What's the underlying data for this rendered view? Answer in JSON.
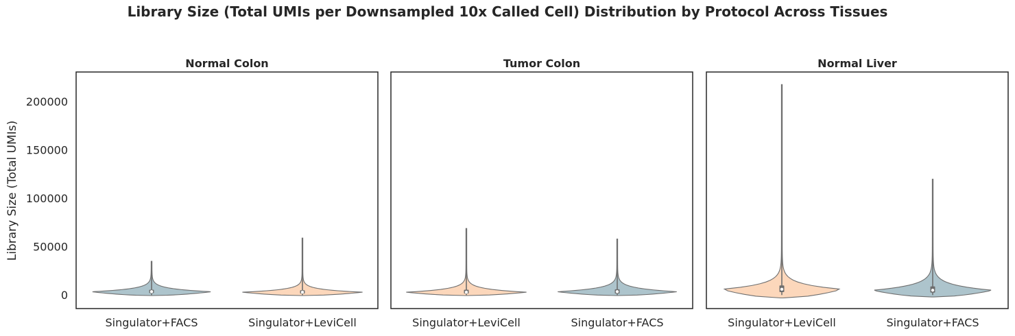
{
  "figure": {
    "title": "Library Size (Total UMIs per Downsampled 10x Called Cell) Distribution by Protocol Across Tissues",
    "ylabel": "Library Size (Total UMIs)"
  },
  "colors": {
    "Singulator+FACS": "#adc4cc",
    "Singulator+LeviCell": "#fcd7bb",
    "outline": "#6e6e6e",
    "box": "#6e6e6e",
    "median": "#ffffff"
  },
  "chart_data": [
    {
      "type": "violin",
      "title": "Normal Colon",
      "categories": [
        "Singulator+FACS",
        "Singulator+LeviCell"
      ],
      "ylim": [
        -14000,
        231000
      ],
      "yticks": [
        0,
        50000,
        100000,
        150000,
        200000
      ],
      "grid": false,
      "violins": [
        {
          "category": "Singulator+FACS",
          "min": 0,
          "q1": 2000,
          "median": 3500,
          "q3": 5500,
          "whisker_high": 9000,
          "max": 35000,
          "kde_low": -500
        },
        {
          "category": "Singulator+LeviCell",
          "min": 0,
          "q1": 1500,
          "median": 3000,
          "q3": 5000,
          "whisker_high": 8000,
          "max": 59000,
          "kde_low": -500
        }
      ]
    },
    {
      "type": "violin",
      "title": "Tumor Colon",
      "categories": [
        "Singulator+LeviCell",
        "Singulator+FACS"
      ],
      "ylim": [
        -14000,
        231000
      ],
      "yticks": [
        0,
        50000,
        100000,
        150000,
        200000
      ],
      "grid": false,
      "violins": [
        {
          "category": "Singulator+LeviCell",
          "min": 0,
          "q1": 1500,
          "median": 3000,
          "q3": 5500,
          "whisker_high": 9000,
          "max": 69000,
          "kde_low": -500
        },
        {
          "category": "Singulator+FACS",
          "min": 0,
          "q1": 1500,
          "median": 3500,
          "q3": 6000,
          "whisker_high": 10000,
          "max": 58000,
          "kde_low": -500
        }
      ]
    },
    {
      "type": "violin",
      "title": "Normal Liver",
      "categories": [
        "Singulator+LeviCell",
        "Singulator+FACS"
      ],
      "ylim": [
        -14000,
        231000
      ],
      "yticks": [
        0,
        50000,
        100000,
        150000,
        200000
      ],
      "grid": false,
      "violins": [
        {
          "category": "Singulator+LeviCell",
          "min": 0,
          "q1": 3000,
          "median": 6000,
          "q3": 10000,
          "whisker_high": 16000,
          "max": 218000,
          "kde_low": -3000
        },
        {
          "category": "Singulator+FACS",
          "min": 0,
          "q1": 2500,
          "median": 5000,
          "q3": 9000,
          "whisker_high": 15000,
          "max": 120000,
          "kde_low": -2000
        }
      ]
    }
  ]
}
